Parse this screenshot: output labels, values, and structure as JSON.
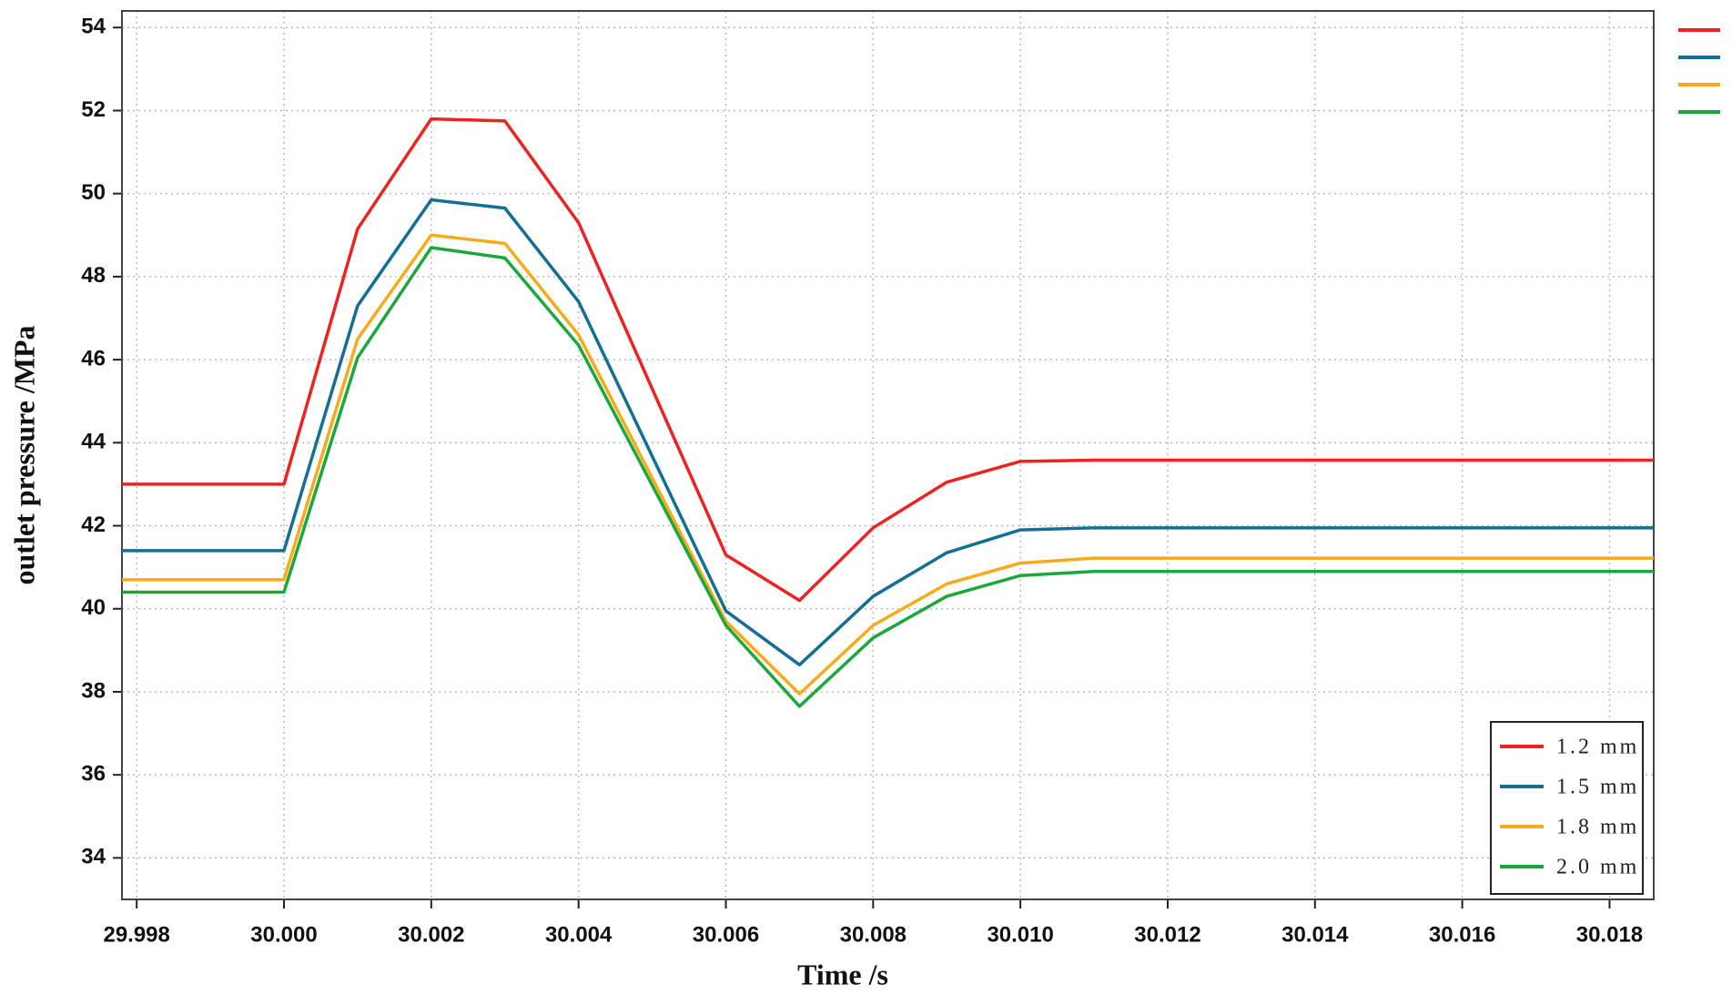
{
  "chart_data": {
    "type": "line",
    "xlabel": "Time /s",
    "ylabel": "outlet pressure /MPa",
    "x": [
      29.9978,
      30.0,
      30.001,
      30.002,
      30.003,
      30.004,
      30.006,
      30.007,
      30.008,
      30.009,
      30.01,
      30.011,
      30.0186
    ],
    "series": [
      {
        "name": "1.2 mm",
        "color": "#ee2222",
        "values": [
          43.0,
          43.0,
          49.15,
          51.8,
          51.75,
          49.3,
          41.3,
          40.2,
          41.95,
          43.05,
          43.55,
          43.58,
          43.58
        ]
      },
      {
        "name": "1.5 mm",
        "color": "#136f94",
        "values": [
          41.4,
          41.4,
          47.3,
          49.85,
          49.65,
          47.4,
          39.95,
          38.65,
          40.3,
          41.35,
          41.9,
          41.95,
          41.95
        ]
      },
      {
        "name": "1.8 mm",
        "color": "#f7ab1b",
        "values": [
          40.7,
          40.7,
          46.5,
          49.0,
          48.8,
          46.6,
          39.7,
          37.95,
          39.6,
          40.6,
          41.1,
          41.22,
          41.22
        ]
      },
      {
        "name": "2.0 mm",
        "color": "#1aa83c",
        "values": [
          40.4,
          40.4,
          46.05,
          48.7,
          48.45,
          46.35,
          39.6,
          37.65,
          39.3,
          40.3,
          40.8,
          40.9,
          40.9
        ]
      }
    ],
    "xlim": [
      29.9978,
      30.0186
    ],
    "ylim": [
      33,
      54.4
    ],
    "xticks": [
      29.998,
      {
        "value": 30.0,
        "label": "30.000"
      },
      30.002,
      30.004,
      30.006,
      30.008,
      {
        "value": 30.01,
        "label": "30.010"
      },
      30.012,
      30.014,
      30.016,
      30.018
    ],
    "yticks": [
      34,
      36,
      38,
      40,
      42,
      44,
      46,
      48,
      50,
      52,
      54
    ],
    "grid": true,
    "legend": "lower right"
  }
}
